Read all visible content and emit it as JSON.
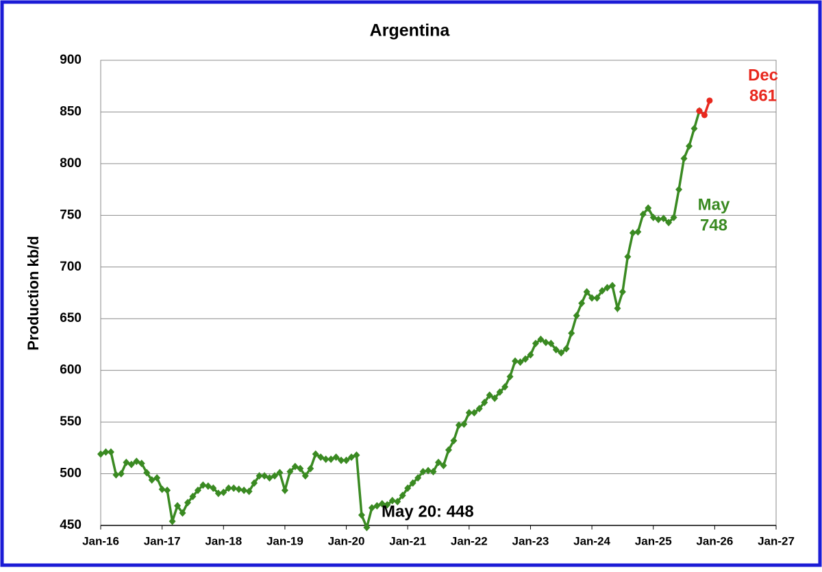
{
  "chart_data": {
    "type": "line",
    "title": "Argentina",
    "y_label": "Production kb/d",
    "xlim": [
      "2016-01",
      "2027-01"
    ],
    "xticks": [
      {
        "value": "2016-01",
        "label": "Jan-16"
      },
      {
        "value": "2017-01",
        "label": "Jan-17"
      },
      {
        "value": "2018-01",
        "label": "Jan-18"
      },
      {
        "value": "2019-01",
        "label": "Jan-19"
      },
      {
        "value": "2020-01",
        "label": "Jan-20"
      },
      {
        "value": "2021-01",
        "label": "Jan-21"
      },
      {
        "value": "2022-01",
        "label": "Jan-22"
      },
      {
        "value": "2023-01",
        "label": "Jan-23"
      },
      {
        "value": "2024-01",
        "label": "Jan-24"
      },
      {
        "value": "2025-01",
        "label": "Jan-25"
      },
      {
        "value": "2026-01",
        "label": "Jan-26"
      },
      {
        "value": "2027-01",
        "label": "Jan-27"
      }
    ],
    "ylim": [
      450,
      900
    ],
    "yticks": [
      450,
      500,
      550,
      600,
      650,
      700,
      750,
      800,
      850,
      900
    ],
    "grid": true,
    "series": [
      {
        "color": "#3a8a22",
        "marker": "diamond",
        "x": [
          "2016-01",
          "2016-02",
          "2016-03",
          "2016-04",
          "2016-05",
          "2016-06",
          "2016-07",
          "2016-08",
          "2016-09",
          "2016-10",
          "2016-11",
          "2016-12",
          "2017-01",
          "2017-02",
          "2017-03",
          "2017-04",
          "2017-05",
          "2017-06",
          "2017-07",
          "2017-08",
          "2017-09",
          "2017-10",
          "2017-11",
          "2017-12",
          "2018-01",
          "2018-02",
          "2018-03",
          "2018-04",
          "2018-05",
          "2018-06",
          "2018-07",
          "2018-08",
          "2018-09",
          "2018-10",
          "2018-11",
          "2018-12",
          "2019-01",
          "2019-02",
          "2019-03",
          "2019-04",
          "2019-05",
          "2019-06",
          "2019-07",
          "2019-08",
          "2019-09",
          "2019-10",
          "2019-11",
          "2019-12",
          "2020-01",
          "2020-02",
          "2020-03",
          "2020-04",
          "2020-05",
          "2020-06",
          "2020-07",
          "2020-08",
          "2020-09",
          "2020-10",
          "2020-11",
          "2020-12",
          "2021-01",
          "2021-02",
          "2021-03",
          "2021-04",
          "2021-05",
          "2021-06",
          "2021-07",
          "2021-08",
          "2021-09",
          "2021-10",
          "2021-11",
          "2021-12",
          "2022-01",
          "2022-02",
          "2022-03",
          "2022-04",
          "2022-05",
          "2022-06",
          "2022-07",
          "2022-08",
          "2022-09",
          "2022-10",
          "2022-11",
          "2022-12",
          "2023-01",
          "2023-02",
          "2023-03",
          "2023-04",
          "2023-05",
          "2023-06",
          "2023-07",
          "2023-08",
          "2023-09",
          "2023-10",
          "2023-11",
          "2023-12",
          "2024-01",
          "2024-02",
          "2024-03",
          "2024-04",
          "2024-05",
          "2024-06",
          "2024-07",
          "2024-08",
          "2024-09",
          "2024-10",
          "2024-11",
          "2024-12",
          "2025-01",
          "2025-02",
          "2025-03",
          "2025-04",
          "2025-05",
          "2025-06",
          "2025-07",
          "2025-08",
          "2025-09",
          "2025-10"
        ],
        "values": [
          519,
          521,
          521,
          499,
          500,
          511,
          509,
          512,
          510,
          501,
          494,
          496,
          485,
          484,
          454,
          469,
          462,
          472,
          478,
          484,
          489,
          488,
          486,
          481,
          482,
          486,
          486,
          485,
          484,
          483,
          491,
          498,
          498,
          496,
          498,
          501,
          484,
          502,
          507,
          505,
          498,
          505,
          519,
          516,
          514,
          514,
          516,
          513,
          513,
          516,
          518,
          460,
          448,
          467,
          469,
          471,
          470,
          474,
          473,
          479,
          486,
          491,
          496,
          502,
          503,
          502,
          511,
          508,
          523,
          532,
          547,
          548,
          559,
          559,
          563,
          569,
          576,
          573,
          579,
          584,
          594,
          609,
          608,
          611,
          615,
          626,
          630,
          627,
          626,
          620,
          617,
          621,
          636,
          653,
          665,
          676,
          670,
          670,
          677,
          680,
          682,
          660,
          676,
          710,
          733,
          734,
          751,
          757,
          748,
          746,
          747,
          743,
          748,
          775,
          805,
          817,
          834,
          851
        ]
      },
      {
        "color": "#e8281e",
        "marker": "circle",
        "x": [
          "2025-10",
          "2025-11",
          "2025-12"
        ],
        "values": [
          851,
          847,
          861
        ]
      }
    ],
    "annotations": [
      {
        "lines": [
          "May",
          "748"
        ],
        "color": "#3a8a22"
      },
      {
        "lines": [
          "Dec",
          "861"
        ],
        "color": "#e8281e"
      },
      {
        "lines": [
          "May 20: 448"
        ],
        "color": "#000000"
      }
    ]
  }
}
